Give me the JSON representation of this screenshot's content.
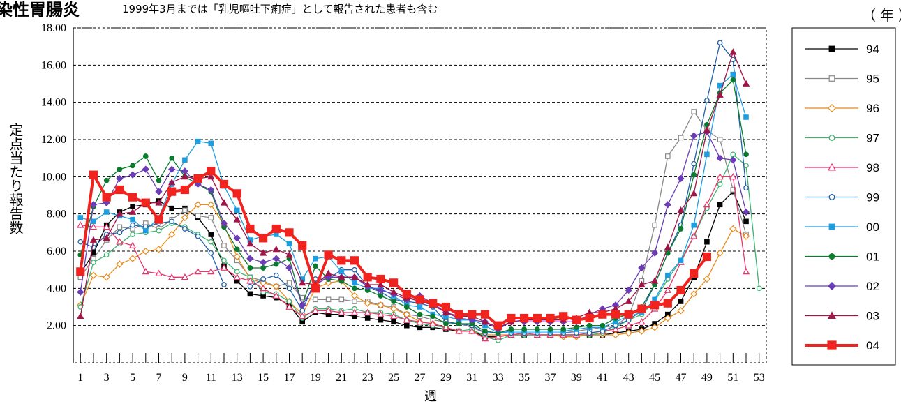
{
  "title": "染性胃腸炎",
  "subtitle": "1999年3月までは「乳児嘔吐下痢症」として報告された患者も含む",
  "unit_label": "（年）",
  "chart_data": {
    "type": "line",
    "xlabel": "週",
    "ylabel": "定点当たり報告数",
    "xlim": [
      1,
      53
    ],
    "ylim": [
      0,
      18
    ],
    "yticks": [
      "2.00",
      "4.00",
      "6.00",
      "8.00",
      "10.00",
      "12.00",
      "14.00",
      "16.00",
      "18.00"
    ],
    "xticks": [
      "1",
      "3",
      "5",
      "7",
      "9",
      "11",
      "13",
      "15",
      "17",
      "19",
      "21",
      "23",
      "25",
      "27",
      "29",
      "31",
      "33",
      "35",
      "37",
      "39",
      "41",
      "43",
      "45",
      "47",
      "49",
      "51",
      "53"
    ],
    "grid": "horizontal dashed",
    "legend_position": "right",
    "series": [
      {
        "name": "94",
        "color": "#000000",
        "marker": "square-filled",
        "values": [
          4.8,
          5.9,
          7.4,
          8.1,
          8.4,
          8.5,
          8.7,
          8.3,
          8.3,
          7.8,
          6.9,
          5.2,
          4.4,
          3.7,
          3.6,
          3.5,
          3.1,
          2.2,
          2.7,
          2.6,
          2.6,
          2.5,
          2.4,
          2.3,
          2.2,
          2.0,
          1.9,
          1.9,
          1.8,
          1.7,
          1.7,
          1.4,
          1.4,
          1.5,
          1.5,
          1.5,
          1.5,
          1.5,
          1.5,
          1.5,
          1.5,
          1.6,
          1.7,
          1.8,
          2.1,
          2.6,
          3.3,
          4.6,
          6.5,
          8.5,
          9.2,
          7.6
        ]
      },
      {
        "name": "95",
        "color": "#888888",
        "marker": "square-open",
        "values": [
          4.6,
          5.6,
          6.6,
          7.3,
          7.2,
          7.5,
          7.2,
          7.7,
          8.2,
          7.9,
          7.8,
          6.3,
          5.5,
          4.6,
          4.4,
          4.1,
          4.3,
          3.5,
          3.4,
          3.4,
          3.4,
          3.3,
          3.3,
          3.1,
          3.0,
          2.6,
          2.5,
          2.3,
          2.2,
          2.1,
          1.9,
          1.6,
          1.6,
          1.6,
          1.6,
          1.6,
          1.6,
          1.6,
          1.7,
          1.8,
          1.9,
          2.0,
          2.5,
          4.4,
          7.4,
          11.1,
          12.1,
          13.5,
          12.5,
          12.0,
          9.3,
          6.9
        ]
      },
      {
        "name": "96",
        "color": "#e88a1a",
        "marker": "diamond-open",
        "values": [
          3.1,
          4.7,
          4.6,
          5.3,
          5.6,
          6.0,
          6.1,
          6.9,
          7.8,
          8.5,
          8.5,
          7.4,
          5.7,
          4.5,
          4.3,
          4.1,
          3.3,
          2.6,
          4.0,
          4.3,
          4.4,
          3.6,
          3.2,
          3.1,
          2.9,
          2.6,
          2.2,
          2.1,
          1.9,
          1.7,
          1.7,
          1.5,
          1.5,
          1.5,
          1.5,
          1.5,
          1.5,
          1.4,
          1.4,
          1.5,
          1.5,
          1.5,
          1.6,
          1.7,
          1.9,
          2.4,
          2.8,
          3.7,
          4.5,
          5.9,
          7.2,
          6.8
        ]
      },
      {
        "name": "97",
        "color": "#3cb371",
        "marker": "circle-open",
        "values": [
          3.0,
          5.4,
          5.8,
          6.4,
          6.9,
          7.0,
          7.1,
          7.5,
          7.3,
          6.9,
          6.5,
          5.5,
          4.9,
          4.6,
          3.8,
          3.7,
          3.3,
          2.4,
          2.9,
          2.9,
          2.8,
          2.9,
          2.7,
          2.7,
          2.6,
          2.3,
          2.1,
          2.0,
          1.9,
          1.7,
          1.8,
          1.4,
          1.2,
          1.5,
          1.5,
          1.5,
          1.5,
          1.5,
          1.5,
          1.5,
          1.6,
          1.9,
          2.3,
          2.6,
          3.3,
          4.5,
          5.5,
          6.8,
          8.3,
          9.6,
          11.2,
          10.6,
          4.0
        ]
      },
      {
        "name": "98",
        "color": "#e8336b",
        "marker": "triangle-open",
        "values": [
          7.4,
          7.3,
          7.3,
          6.5,
          6.3,
          4.9,
          4.8,
          4.6,
          4.6,
          4.9,
          4.9,
          5.1,
          4.6,
          4.4,
          4.0,
          3.6,
          3.0,
          2.5,
          2.8,
          2.8,
          2.7,
          2.7,
          2.7,
          2.6,
          2.5,
          2.3,
          2.2,
          2.1,
          1.9,
          1.7,
          1.7,
          1.3,
          1.4,
          1.5,
          1.6,
          1.5,
          1.5,
          1.5,
          1.5,
          1.6,
          1.7,
          1.8,
          2.0,
          2.2,
          2.9,
          3.9,
          5.4,
          6.8,
          8.5,
          10.0,
          10.0,
          4.9
        ]
      },
      {
        "name": "99",
        "color": "#1f5faa",
        "marker": "circle-open",
        "values": [
          6.5,
          6.2,
          6.9,
          7.0,
          7.4,
          7.3,
          7.5,
          7.6,
          7.2,
          6.8,
          5.9,
          4.2,
          null,
          4.1,
          4.5,
          4.7,
          4.0,
          2.8,
          4.5,
          4.5,
          5.0,
          5.0,
          4.1,
          3.8,
          3.4,
          3.3,
          3.2,
          3.0,
          2.2,
          2.1,
          2.0,
          1.6,
          1.6,
          1.6,
          1.6,
          1.6,
          1.6,
          1.6,
          1.6,
          1.6,
          1.7,
          2.0,
          2.3,
          2.8,
          4.2,
          5.9,
          7.4,
          10.7,
          14.1,
          17.2,
          16.3,
          9.4
        ]
      },
      {
        "name": "00",
        "color": "#1e9ee0",
        "marker": "square-filled",
        "values": [
          7.8,
          7.6,
          8.1,
          7.9,
          7.7,
          7.1,
          7.8,
          9.6,
          10.9,
          11.9,
          11.8,
          9.5,
          8.2,
          6.6,
          6.8,
          6.9,
          6.4,
          4.5,
          5.6,
          5.7,
          4.9,
          4.3,
          4.0,
          4.0,
          3.6,
          3.1,
          3.0,
          2.6,
          2.5,
          2.3,
          2.3,
          2.0,
          1.6,
          1.7,
          1.7,
          1.7,
          1.7,
          1.7,
          1.8,
          1.9,
          1.9,
          2.2,
          2.5,
          2.7,
          3.4,
          4.7,
          5.5,
          7.4,
          11.2,
          14.9,
          15.5,
          13.2
        ]
      },
      {
        "name": "01",
        "color": "#0a7a2e",
        "marker": "circle-filled",
        "values": [
          5.8,
          8.4,
          9.8,
          10.4,
          10.6,
          11.1,
          9.8,
          11.0,
          10.0,
          9.6,
          9.2,
          7.3,
          6.1,
          5.1,
          5.1,
          5.3,
          5.6,
          3.1,
          5.2,
          4.5,
          4.4,
          4.0,
          3.9,
          3.6,
          3.3,
          3.0,
          2.6,
          2.5,
          2.1,
          2.1,
          2.1,
          1.7,
          1.6,
          1.8,
          1.8,
          1.8,
          1.8,
          1.8,
          1.9,
          2.0,
          2.0,
          2.4,
          2.6,
          3.0,
          4.2,
          5.9,
          7.2,
          10.1,
          12.8,
          14.5,
          15.2,
          11.2
        ]
      },
      {
        "name": "02",
        "color": "#6a3cb5",
        "marker": "diamond-filled",
        "values": [
          3.8,
          8.5,
          8.6,
          9.9,
          10.1,
          10.4,
          9.2,
          10.4,
          10.3,
          9.6,
          9.3,
          7.5,
          6.7,
          5.6,
          5.4,
          5.6,
          5.1,
          3.1,
          4.2,
          4.6,
          4.6,
          4.6,
          4.1,
          3.9,
          3.7,
          3.4,
          3.6,
          3.2,
          2.7,
          2.4,
          2.3,
          2.2,
          1.8,
          2.2,
          2.2,
          2.2,
          2.2,
          2.2,
          2.2,
          2.6,
          2.9,
          3.1,
          3.9,
          5.1,
          5.9,
          8.5,
          9.9,
          12.2,
          12.4,
          11.0,
          10.9,
          8.1
        ]
      },
      {
        "name": "03",
        "color": "#a01448",
        "marker": "triangle-filled",
        "values": [
          2.5,
          6.6,
          6.7,
          8.0,
          8.1,
          8.6,
          8.6,
          9.7,
          10.0,
          9.9,
          10.0,
          8.6,
          7.7,
          6.4,
          5.9,
          6.1,
          5.8,
          4.3,
          4.2,
          4.8,
          4.6,
          4.6,
          4.2,
          4.2,
          3.8,
          3.5,
          3.3,
          3.1,
          2.7,
          2.5,
          2.5,
          2.2,
          1.9,
          2.2,
          2.3,
          2.3,
          2.3,
          2.3,
          2.4,
          2.7,
          2.7,
          2.9,
          3.3,
          4.2,
          4.4,
          6.2,
          8.2,
          9.1,
          12.5,
          14.4,
          16.7,
          15.0
        ]
      },
      {
        "name": "04",
        "color": "#f0231e",
        "marker": "square-filled",
        "values": [
          4.9,
          10.1,
          8.9,
          9.3,
          8.9,
          8.6,
          7.7,
          9.2,
          9.3,
          9.9,
          10.3,
          9.6,
          9.1,
          7.2,
          6.7,
          7.2,
          7.0,
          6.3,
          4.0,
          5.8,
          5.5,
          5.5,
          4.6,
          4.5,
          4.3,
          3.7,
          3.4,
          3.2,
          3.0,
          2.6,
          2.6,
          2.6,
          2.0,
          2.4,
          2.4,
          2.4,
          2.4,
          2.5,
          2.3,
          2.4,
          2.6,
          2.6,
          2.6,
          2.9,
          3.1,
          3.2,
          3.9,
          4.8,
          5.7
        ]
      }
    ]
  }
}
